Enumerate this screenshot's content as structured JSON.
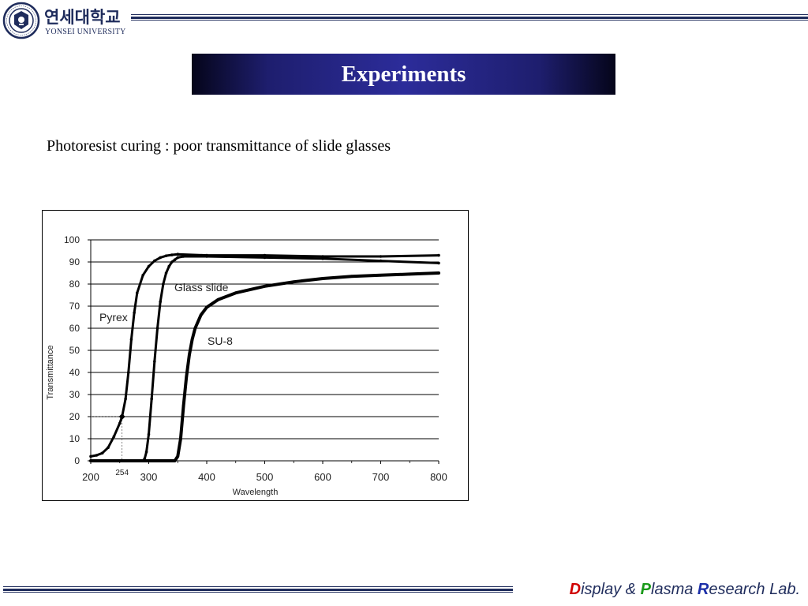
{
  "header": {
    "logo_korean": "연세대학교",
    "logo_english": "YONSEI UNIVERSITY"
  },
  "slide": {
    "title": "Experiments",
    "subtitle": "Photoresist curing : poor transmittance of slide glasses"
  },
  "footer": {
    "lab_name_parts": [
      "D",
      "isplay & ",
      "P",
      "lasma ",
      "R",
      "esearch Lab."
    ],
    "colors": {
      "D": "#d00000",
      "P": "#1a9a1a",
      "R": "#1c2fa8",
      "rest": "#1f2c5c"
    }
  },
  "chart_data": {
    "type": "line",
    "xlabel": "Wavelength",
    "ylabel": "Transmittance",
    "xlim": [
      200,
      800
    ],
    "ylim": [
      0,
      100
    ],
    "xticks": [
      200,
      300,
      400,
      500,
      600,
      700,
      800
    ],
    "yticks": [
      0,
      10,
      20,
      30,
      40,
      50,
      60,
      70,
      80,
      90,
      100
    ],
    "grid": "horizontal",
    "annotation": {
      "label": "254",
      "x": 254,
      "y": 20
    },
    "series": [
      {
        "name": "Pyrex",
        "x": [
          200,
          210,
          220,
          230,
          240,
          250,
          254,
          260,
          265,
          270,
          275,
          280,
          290,
          300,
          310,
          320,
          330,
          340,
          350,
          400,
          500,
          600,
          700,
          800
        ],
        "y": [
          2,
          2.5,
          3.5,
          6,
          11,
          17,
          20,
          28,
          40,
          55,
          67,
          76,
          84,
          88,
          90.5,
          92,
          92.8,
          93.2,
          93.5,
          93,
          93,
          92.5,
          92.5,
          93
        ]
      },
      {
        "name": "Glass slide",
        "x": [
          200,
          290,
          293,
          296,
          300,
          305,
          310,
          315,
          320,
          325,
          330,
          335,
          340,
          345,
          350,
          360,
          400,
          500,
          600,
          700,
          800
        ],
        "y": [
          0,
          0,
          1,
          4,
          12,
          28,
          45,
          60,
          72,
          80,
          85,
          88,
          90,
          91,
          92,
          92.5,
          92.5,
          92,
          91.5,
          90.5,
          89.5
        ]
      },
      {
        "name": "SU-8",
        "x": [
          200,
          345,
          350,
          355,
          360,
          365,
          370,
          375,
          380,
          390,
          400,
          420,
          450,
          500,
          550,
          600,
          650,
          700,
          750,
          800
        ],
        "y": [
          0,
          0,
          2,
          10,
          25,
          38,
          48,
          55,
          60,
          66,
          69.5,
          73,
          76,
          79,
          81,
          82.5,
          83.5,
          84,
          84.5,
          85
        ]
      }
    ]
  }
}
